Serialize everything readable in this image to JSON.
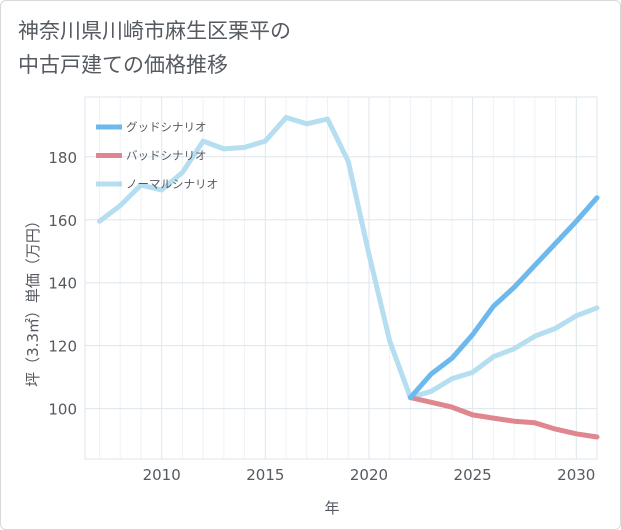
{
  "title": "神奈川県川崎市麻生区栗平の\n中古戸建ての価格推移",
  "chart_data": {
    "type": "line",
    "title": "神奈川県川崎市麻生区栗平の中古戸建ての価格推移",
    "xlabel": "年",
    "ylabel": "坪（3.3㎡）単価（万円）",
    "xlim": [
      2006.3,
      2031
    ],
    "ylim": [
      84,
      199
    ],
    "x_ticks": [
      2010,
      2015,
      2020,
      2025,
      2030
    ],
    "y_ticks": [
      100,
      120,
      140,
      160,
      180
    ],
    "legend_position": "top-left",
    "series": [
      {
        "name": "グッドシナリオ",
        "color": "#6db8ec",
        "points": [
          [
            2022,
            103.5
          ],
          [
            2023,
            111
          ],
          [
            2024,
            116
          ],
          [
            2025,
            123.5
          ],
          [
            2026,
            132.5
          ],
          [
            2027,
            138.5
          ],
          [
            2028,
            145.5
          ],
          [
            2029,
            152.5
          ],
          [
            2030,
            159.5
          ],
          [
            2031,
            167
          ]
        ]
      },
      {
        "name": "バッドシナリオ",
        "color": "#e0868f",
        "points": [
          [
            2022,
            103.5
          ],
          [
            2023,
            102
          ],
          [
            2024,
            100.5
          ],
          [
            2025,
            98
          ],
          [
            2026,
            97
          ],
          [
            2027,
            96
          ],
          [
            2028,
            95.5
          ],
          [
            2029,
            93.5
          ],
          [
            2030,
            92
          ],
          [
            2031,
            91
          ]
        ]
      },
      {
        "name": "ノーマルシナリオ",
        "color": "#b5def0",
        "points": [
          [
            2007,
            159.5
          ],
          [
            2008,
            164.5
          ],
          [
            2009,
            171
          ],
          [
            2010,
            169.5
          ],
          [
            2011,
            175
          ],
          [
            2012,
            185
          ],
          [
            2013,
            182.5
          ],
          [
            2014,
            183
          ],
          [
            2015,
            185
          ],
          [
            2016,
            192.5
          ],
          [
            2017,
            190.5
          ],
          [
            2018,
            192
          ],
          [
            2019,
            178.5
          ],
          [
            2020,
            149
          ],
          [
            2021,
            121.5
          ],
          [
            2022,
            103.5
          ],
          [
            2023,
            105.5
          ],
          [
            2024,
            109.5
          ],
          [
            2025,
            111.5
          ],
          [
            2026,
            116.5
          ],
          [
            2027,
            119
          ],
          [
            2028,
            123
          ],
          [
            2029,
            125.5
          ],
          [
            2030,
            129.5
          ],
          [
            2031,
            132
          ]
        ]
      }
    ]
  }
}
